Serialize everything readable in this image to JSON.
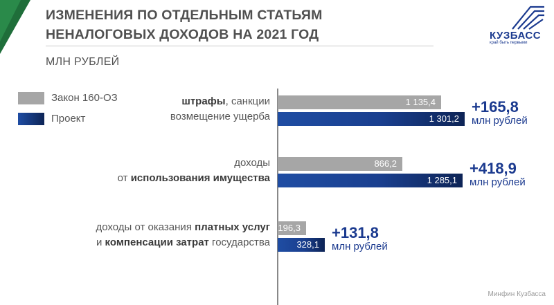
{
  "header": {
    "title_line1": "ИЗМЕНЕНИЯ ПО ОТДЕЛЬНЫМ СТАТЬЯМ",
    "title_line2": "НЕНАЛОГОВЫХ ДОХОДОВ НА 2021 ГОД",
    "units": "МЛН РУБЛЕЙ"
  },
  "logo": {
    "name": "КУЗБАСС",
    "tagline": "край быть первыми"
  },
  "legend": [
    {
      "label": "Закон 160-ОЗ",
      "color": "#a6a6a6"
    },
    {
      "label": "Проект",
      "color": "#1f4da3"
    }
  ],
  "chart_data": {
    "type": "bar",
    "orientation": "horizontal",
    "categories": [
      {
        "line1_pre": "",
        "line1_bold": "штрафы",
        "line1_post": ", санкции",
        "line2_pre": "возмещение ущерба",
        "line2_bold": "",
        "line2_post": ""
      },
      {
        "line1_pre": "доходы",
        "line1_bold": "",
        "line1_post": "",
        "line2_pre": "от ",
        "line2_bold": "использования имущества",
        "line2_post": ""
      },
      {
        "line1_pre": "доходы от оказания ",
        "line1_bold": "платных услуг",
        "line1_post": "",
        "line2_pre": "и ",
        "line2_bold": "компенсации затрат",
        "line2_post": " государства"
      }
    ],
    "series": [
      {
        "name": "Закон 160-ОЗ",
        "values": [
          1135.4,
          866.2,
          196.3
        ],
        "labels": [
          "1 135,4",
          "866,2",
          "196,3"
        ]
      },
      {
        "name": "Проект",
        "values": [
          1301.2,
          1285.1,
          328.1
        ],
        "labels": [
          "1 301,2",
          "1 285,1",
          "328,1"
        ]
      }
    ],
    "deltas": [
      {
        "value": "+165,8",
        "unit": "млн рублей"
      },
      {
        "value": "+418,9",
        "unit": "млн рублей"
      },
      {
        "value": "+131,8",
        "unit": "млн рублей"
      }
    ]
  },
  "footer": "Минфин Кузбасса"
}
